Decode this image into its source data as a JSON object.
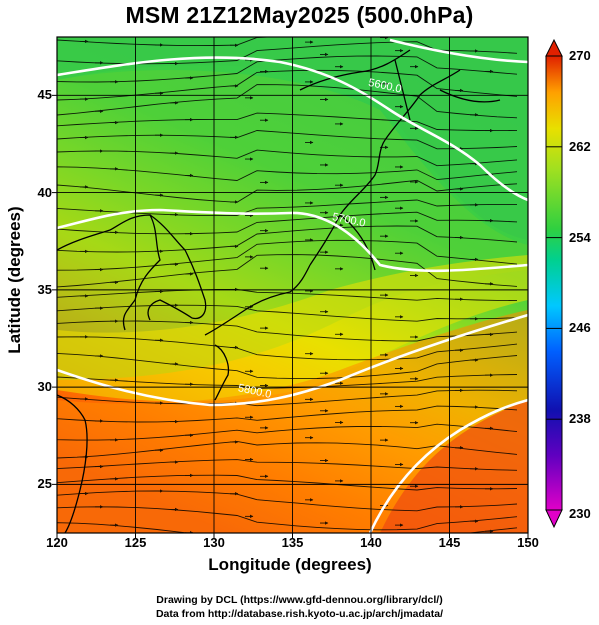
{
  "title": "MSM 21Z12May2025 (500.0hPa)",
  "axes": {
    "xlabel": "Longitude (degrees)",
    "ylabel": "Latitude  (degrees)",
    "xticks": [
      120,
      125,
      130,
      135,
      140,
      145,
      150
    ],
    "yticks": [
      25,
      30,
      35,
      40,
      45
    ],
    "xlim": [
      120,
      150
    ],
    "ylim": [
      22.5,
      48
    ]
  },
  "colorbar": {
    "ticks": [
      230,
      238,
      246,
      254,
      262,
      270
    ],
    "range": [
      230,
      270
    ],
    "colors": [
      "#e000c8",
      "#1010b0",
      "#0050ff",
      "#00c8ff",
      "#00e0a0",
      "#30d040",
      "#a0e020",
      "#e8e000",
      "#ffa000",
      "#ff5000",
      "#e02000"
    ]
  },
  "contours": [
    {
      "label": "5600.0",
      "lon": 139.8,
      "lat": 45.5
    },
    {
      "label": "5700.0",
      "lon": 137.5,
      "lat": 38.6
    },
    {
      "label": "5800.0",
      "lon": 131.5,
      "lat": 29.8
    }
  ],
  "credits": {
    "line1": "Drawing by DCL (https://www.gfd-dennou.org/library/dcl/)",
    "line2": "Data from http://database.rish.kyoto-u.ac.jp/arch/jmadata/"
  }
}
